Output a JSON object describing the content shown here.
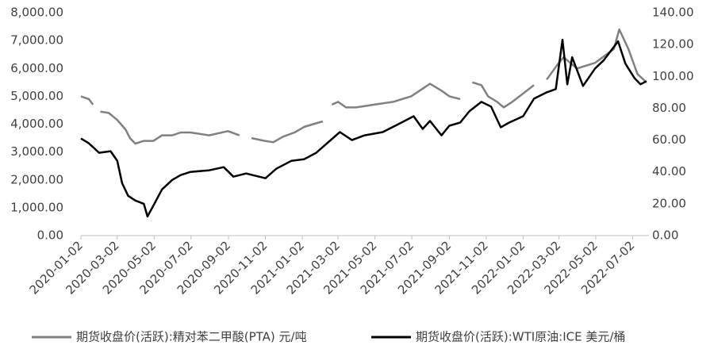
{
  "chart_data": {
    "type": "line",
    "xlim": [
      "2020-01-02",
      "2022-07-29"
    ],
    "xticks": [
      "2020-01-02",
      "2020-03-02",
      "2020-05-02",
      "2020-07-02",
      "2020-09-02",
      "2020-11-02",
      "2021-01-02",
      "2021-03-02",
      "2021-05-02",
      "2021-07-02",
      "2021-09-02",
      "2021-11-02",
      "2022-01-02",
      "2022-03-02",
      "2022-05-02",
      "2022-07-02"
    ],
    "ylim": [
      0,
      8000
    ],
    "yticks": [
      {
        "value": 0,
        "label": "0.00"
      },
      {
        "value": 1000,
        "label": "1,000.00"
      },
      {
        "value": 2000,
        "label": "2,000.00"
      },
      {
        "value": 3000,
        "label": "3,000.00"
      },
      {
        "value": 4000,
        "label": "4,000.00"
      },
      {
        "value": 5000,
        "label": "5,000.00"
      },
      {
        "value": 6000,
        "label": "6,000.00"
      },
      {
        "value": 7000,
        "label": "7,000.00"
      },
      {
        "value": 8000,
        "label": "8,000.00"
      }
    ],
    "y2lim": [
      0,
      140
    ],
    "y2ticks": [
      {
        "value": 0,
        "label": "0.00"
      },
      {
        "value": 20,
        "label": "20.00"
      },
      {
        "value": 40,
        "label": "40.00"
      },
      {
        "value": 60,
        "label": "60.00"
      },
      {
        "value": 80,
        "label": "80.00"
      },
      {
        "value": 100,
        "label": "100.00"
      },
      {
        "value": 120,
        "label": "120.00"
      },
      {
        "value": 140,
        "label": "140.00"
      }
    ],
    "series": [
      {
        "name": "期货收盘价(活跃):精对苯二甲酸(PTA) 元/吨",
        "color": "#808080",
        "x": [
          "2020-01-02",
          "2020-01-15",
          "2020-01-22",
          "2020-01-28",
          "2020-02-03",
          "2020-02-17",
          "2020-03-02",
          "2020-03-16",
          "2020-03-23",
          "2020-04-01",
          "2020-04-15",
          "2020-05-01",
          "2020-05-15",
          "2020-06-01",
          "2020-06-15",
          "2020-07-01",
          "2020-08-01",
          "2020-09-01",
          "2020-09-20",
          "2020-10-01",
          "2020-10-10",
          "2020-11-01",
          "2020-11-15",
          "2020-12-01",
          "2020-12-20",
          "2021-01-05",
          "2021-01-20",
          "2021-02-05",
          "2021-02-12",
          "2021-02-20",
          "2021-03-02",
          "2021-03-15",
          "2021-04-01",
          "2021-05-01",
          "2021-06-01",
          "2021-07-01",
          "2021-08-01",
          "2021-08-20",
          "2021-09-02",
          "2021-09-20",
          "2021-10-05",
          "2021-10-10",
          "2021-10-25",
          "2021-11-05",
          "2021-11-20",
          "2021-12-01",
          "2021-12-15",
          "2022-01-02",
          "2022-01-20",
          "2022-02-02",
          "2022-02-10",
          "2022-03-02",
          "2022-03-10",
          "2022-04-01",
          "2022-05-01",
          "2022-06-01",
          "2022-06-10",
          "2022-06-25",
          "2022-07-10",
          "2022-07-25"
        ],
        "values": [
          5000,
          4900,
          4700,
          null,
          4450,
          4400,
          4150,
          3800,
          3500,
          3300,
          3400,
          3400,
          3600,
          3600,
          3700,
          3700,
          3600,
          3750,
          3600,
          null,
          3500,
          3400,
          3350,
          3550,
          3700,
          3900,
          4000,
          4100,
          null,
          4700,
          4800,
          4600,
          4600,
          4700,
          4800,
          5000,
          5450,
          5200,
          5000,
          4900,
          null,
          5500,
          5400,
          5000,
          4800,
          4600,
          4800,
          5100,
          5400,
          null,
          5600,
          6200,
          6400,
          6000,
          6200,
          6700,
          7400,
          6700,
          5800,
          5500
        ]
      },
      {
        "name": "期货收盘价(活跃):WTI原油:ICE 美元/桶",
        "color": "#000000",
        "axis": "y2",
        "x": [
          "2020-01-02",
          "2020-01-15",
          "2020-02-01",
          "2020-02-20",
          "2020-03-02",
          "2020-03-10",
          "2020-03-20",
          "2020-04-01",
          "2020-04-15",
          "2020-04-21",
          "2020-05-01",
          "2020-05-15",
          "2020-06-01",
          "2020-06-15",
          "2020-07-01",
          "2020-08-01",
          "2020-08-25",
          "2020-09-10",
          "2020-10-01",
          "2020-11-02",
          "2020-11-20",
          "2020-12-15",
          "2021-01-05",
          "2021-01-25",
          "2021-02-15",
          "2021-03-05",
          "2021-03-25",
          "2021-04-15",
          "2021-05-15",
          "2021-06-15",
          "2021-07-05",
          "2021-07-20",
          "2021-08-01",
          "2021-08-20",
          "2021-09-02",
          "2021-09-20",
          "2021-10-05",
          "2021-10-25",
          "2021-11-10",
          "2021-11-26",
          "2021-12-10",
          "2022-01-02",
          "2022-01-20",
          "2022-02-10",
          "2022-02-25",
          "2022-03-08",
          "2022-03-16",
          "2022-03-24",
          "2022-04-11",
          "2022-05-01",
          "2022-05-15",
          "2022-06-08",
          "2022-06-20",
          "2022-07-05",
          "2022-07-15",
          "2022-07-25"
        ],
        "values": [
          61,
          58,
          52,
          53,
          47,
          33,
          25,
          22,
          20,
          12,
          19,
          29,
          35,
          38,
          40,
          41,
          43,
          37,
          39,
          36,
          42,
          47,
          48,
          52,
          59,
          65,
          60,
          63,
          65,
          71,
          75,
          67,
          72,
          63,
          69,
          71,
          78,
          84,
          81,
          68,
          71,
          75,
          86,
          90,
          92,
          123,
          95,
          112,
          94,
          105,
          110,
          122,
          108,
          99,
          95,
          97
        ]
      }
    ]
  }
}
